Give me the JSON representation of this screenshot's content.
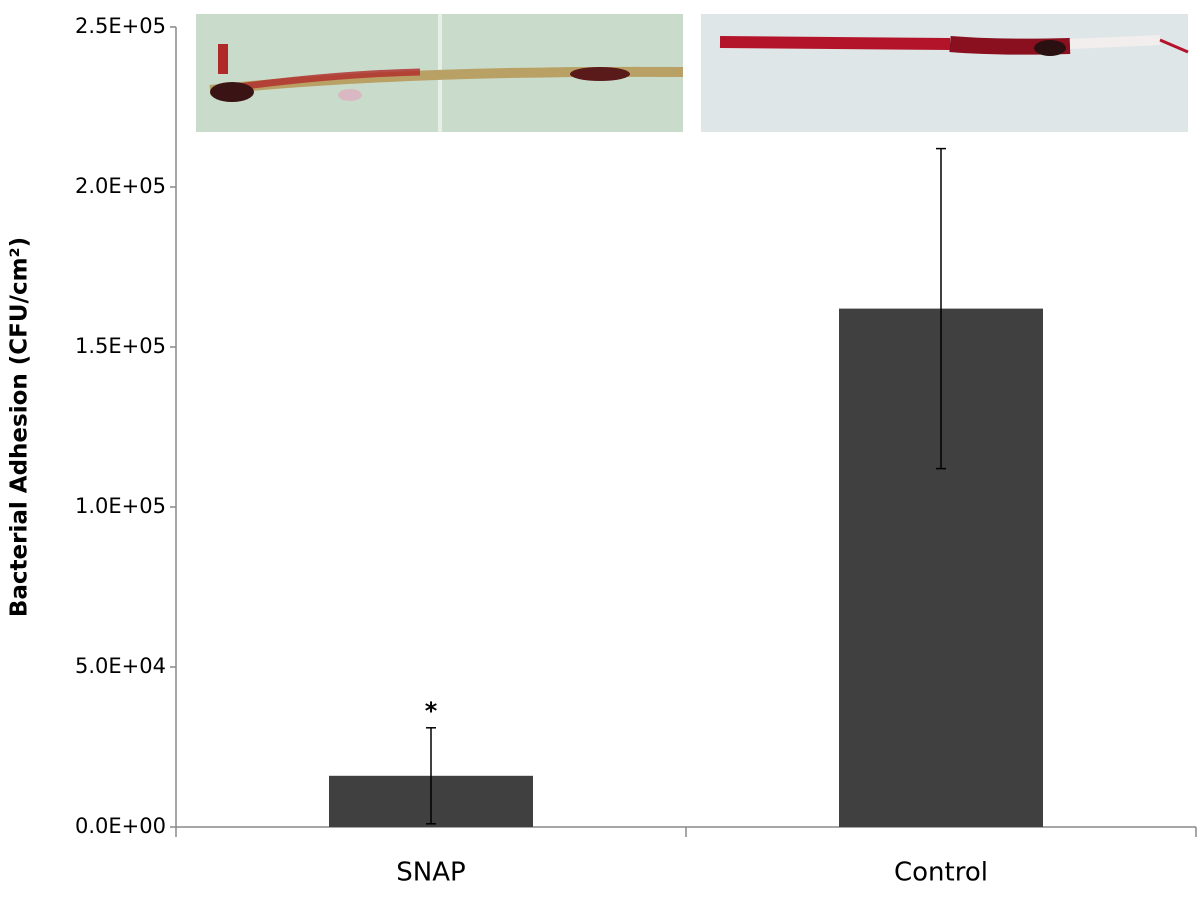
{
  "chart_data": {
    "type": "bar",
    "y_label": "Bacterial Adhesion (CFU/cm²)",
    "categories": [
      "SNAP",
      "Control"
    ],
    "values": [
      16000,
      162000
    ],
    "errors": [
      15000,
      50000
    ],
    "color": "#404040",
    "annotations": [
      "*"
    ],
    "ylim": [
      0,
      250000
    ],
    "yticks": [
      {
        "value": 0,
        "label": "0.0E+00"
      },
      {
        "value": 50000,
        "label": "5.0E+04"
      },
      {
        "value": 100000,
        "label": "1.0E+05"
      },
      {
        "value": 150000,
        "label": "1.5E+05"
      },
      {
        "value": 200000,
        "label": "2.0E+05"
      },
      {
        "value": 250000,
        "label": "2.5E+05"
      }
    ],
    "grid": false
  }
}
